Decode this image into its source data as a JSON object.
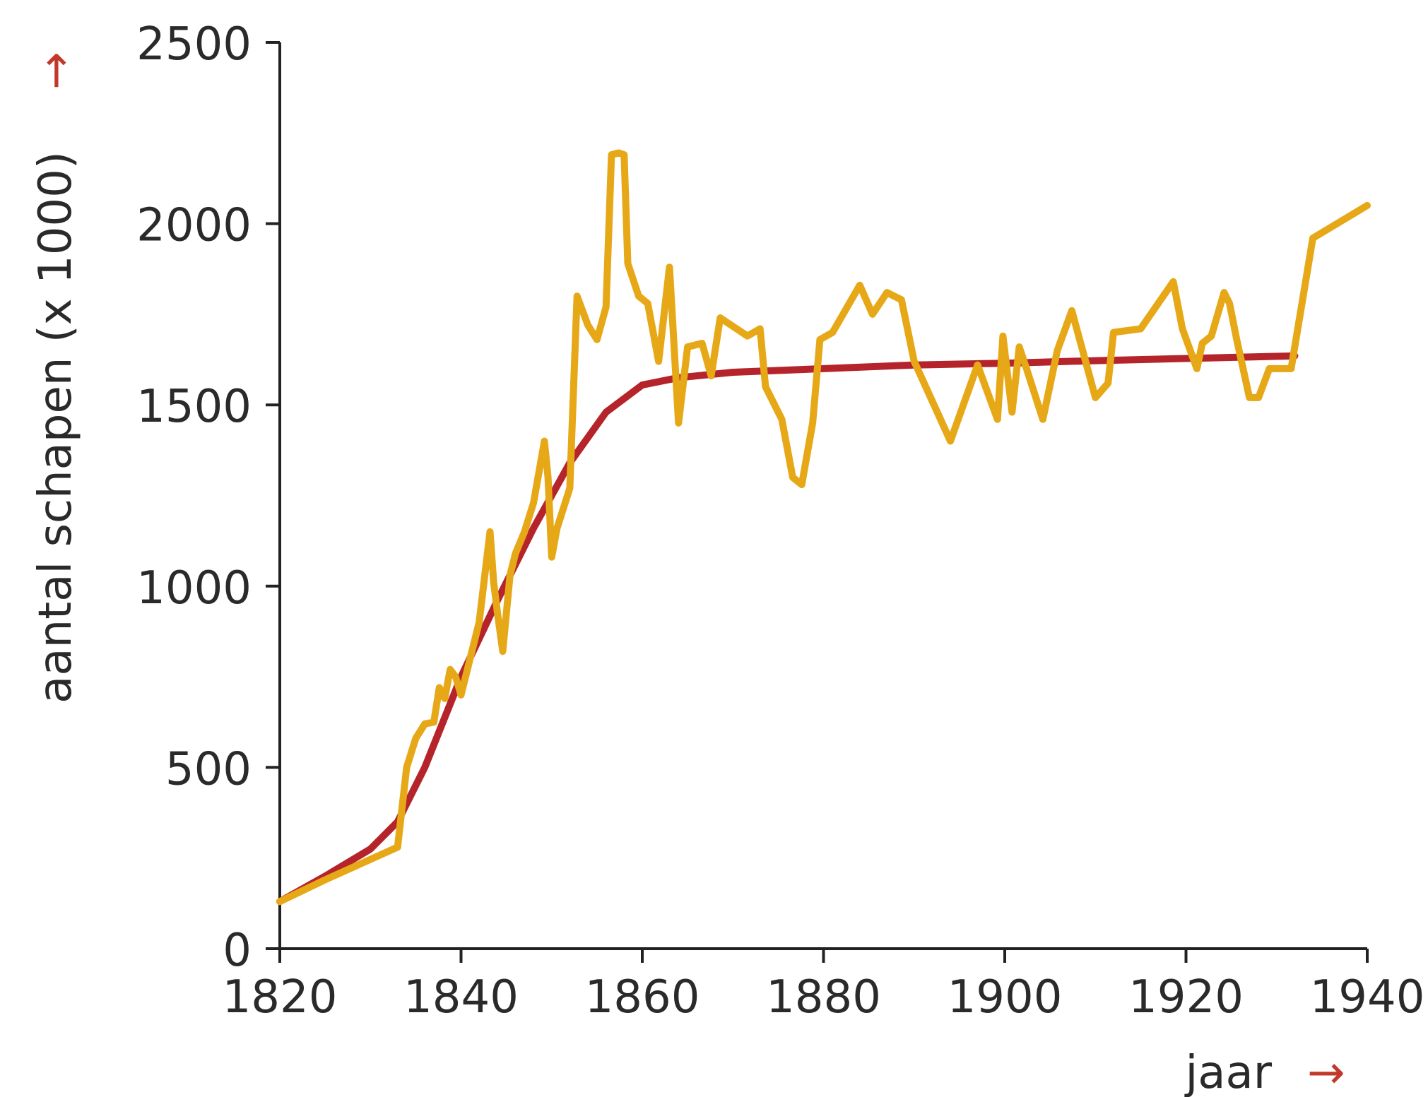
{
  "chart_data": {
    "type": "line",
    "title": "",
    "xlabel": "jaar",
    "ylabel": "aantal schapen (x 1000)",
    "axis_arrow": "→",
    "xlim": [
      1820,
      1940
    ],
    "ylim": [
      0,
      2500
    ],
    "xticks": [
      1820,
      1840,
      1860,
      1880,
      1900,
      1920,
      1940
    ],
    "yticks": [
      0,
      500,
      1000,
      1500,
      2000,
      2500
    ],
    "grid": false,
    "colors": {
      "model": "#b5242a",
      "observed": "#e6a817",
      "axis": "#222222",
      "arrow": "#c0392b"
    },
    "series": [
      {
        "key": "model",
        "x": [
          1820,
          1825,
          1830,
          1833,
          1836,
          1840,
          1844,
          1848,
          1852,
          1856,
          1860,
          1864,
          1870,
          1880,
          1890,
          1900,
          1910,
          1920,
          1932
        ],
        "y": [
          130,
          200,
          275,
          350,
          500,
          750,
          960,
          1160,
          1340,
          1480,
          1555,
          1575,
          1590,
          1600,
          1610,
          1615,
          1622,
          1628,
          1635
        ]
      },
      {
        "key": "observed",
        "x": [
          1820,
          1825,
          1833,
          1834,
          1835,
          1836,
          1837,
          1837.6,
          1838.2,
          1838.8,
          1839.4,
          1840,
          1841,
          1842,
          1843.2,
          1843.6,
          1844,
          1844.6,
          1845.4,
          1846,
          1847,
          1848,
          1849.2,
          1849.6,
          1850,
          1850.6,
          1852,
          1852.8,
          1854,
          1855,
          1856,
          1856.6,
          1857.4,
          1858,
          1858.4,
          1859.6,
          1860.6,
          1861.8,
          1863,
          1864,
          1865,
          1866.6,
          1867.6,
          1868.6,
          1871.6,
          1873,
          1873.6,
          1875.4,
          1876.6,
          1877.6,
          1878.8,
          1879.6,
          1881,
          1884,
          1885.4,
          1887,
          1888.6,
          1890,
          1894,
          1897,
          1899.2,
          1899.8,
          1900.8,
          1901.6,
          1902.4,
          1904.2,
          1905.8,
          1907.4,
          1910,
          1911.4,
          1912,
          1915,
          1918.6,
          1919.6,
          1921.2,
          1921.8,
          1922.8,
          1924.2,
          1924.8,
          1925.6,
          1927,
          1928,
          1929.2,
          1930.4,
          1931.6,
          1934,
          1940
        ],
        "y": [
          130,
          190,
          280,
          500,
          580,
          620,
          625,
          720,
          690,
          770,
          750,
          700,
          800,
          900,
          1150,
          1010,
          930,
          820,
          1030,
          1090,
          1150,
          1230,
          1400,
          1300,
          1080,
          1160,
          1270,
          1800,
          1720,
          1680,
          1770,
          2190,
          2195,
          2190,
          1890,
          1800,
          1780,
          1620,
          1880,
          1450,
          1660,
          1670,
          1580,
          1740,
          1690,
          1710,
          1550,
          1460,
          1300,
          1280,
          1450,
          1680,
          1700,
          1830,
          1750,
          1810,
          1790,
          1620,
          1400,
          1610,
          1460,
          1690,
          1480,
          1660,
          1600,
          1460,
          1650,
          1760,
          1520,
          1560,
          1700,
          1710,
          1840,
          1710,
          1600,
          1670,
          1690,
          1810,
          1780,
          1680,
          1520,
          1520,
          1600,
          1600,
          1600,
          1960,
          2050
        ]
      }
    ]
  }
}
